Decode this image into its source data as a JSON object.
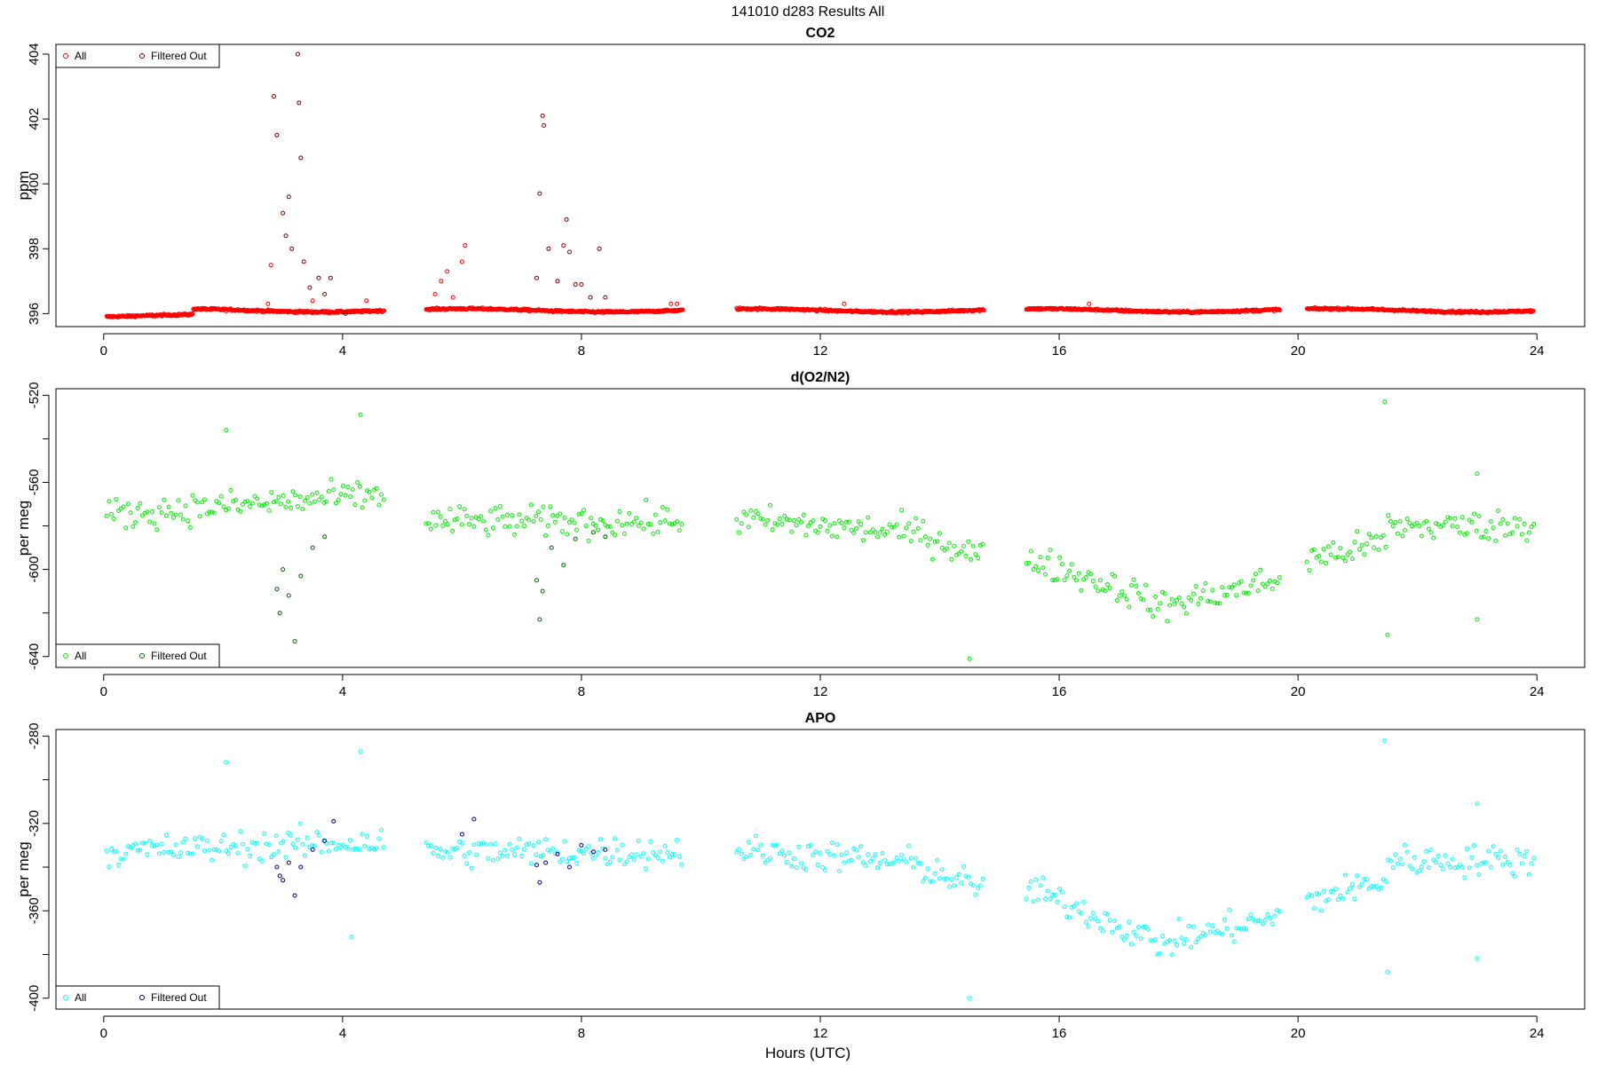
{
  "title": "141010   d283   Results All",
  "xlabel": "Hours (UTC)",
  "chart_data": [
    {
      "type": "scatter",
      "title": "CO2",
      "ylabel": "ppm",
      "xlim": [
        -0.8,
        24.8
      ],
      "ylim": [
        395.6,
        404.3
      ],
      "xticks": [
        0,
        4,
        8,
        12,
        16,
        20,
        24
      ],
      "yticks": [
        396,
        398,
        400,
        402,
        404
      ],
      "legend_position": "top-left",
      "colors": {
        "all": "#ff0000",
        "filtered": "#7a0000"
      },
      "series": [
        {
          "name": "All",
          "points": []
        },
        {
          "name": "Filtered Out",
          "points": [
            [
              2.85,
              402.7
            ],
            [
              2.9,
              401.5
            ],
            [
              3.0,
              399.1
            ],
            [
              3.05,
              398.4
            ],
            [
              3.1,
              399.6
            ],
            [
              3.15,
              398.0
            ],
            [
              3.25,
              404.0
            ],
            [
              3.27,
              402.5
            ],
            [
              3.3,
              400.8
            ],
            [
              3.35,
              397.6
            ],
            [
              3.45,
              396.8
            ],
            [
              3.6,
              397.1
            ],
            [
              3.7,
              396.6
            ],
            [
              3.8,
              397.1
            ],
            [
              4.05,
              396.0
            ],
            [
              7.25,
              397.1
            ],
            [
              7.3,
              399.7
            ],
            [
              7.35,
              402.1
            ],
            [
              7.37,
              401.8
            ],
            [
              7.45,
              398.0
            ],
            [
              7.6,
              397.0
            ],
            [
              7.7,
              398.1
            ],
            [
              7.75,
              398.9
            ],
            [
              7.8,
              397.9
            ],
            [
              7.9,
              396.9
            ],
            [
              8.0,
              396.9
            ],
            [
              8.15,
              396.5
            ],
            [
              8.3,
              398.0
            ],
            [
              8.4,
              396.5
            ]
          ]
        }
      ],
      "x_segments": [
        [
          0.05,
          4.7
        ],
        [
          5.4,
          9.7
        ],
        [
          10.6,
          14.75
        ],
        [
          15.45,
          19.7
        ],
        [
          20.15,
          23.95
        ]
      ]
    },
    {
      "type": "scatter",
      "title": "d(O2/N2)",
      "ylabel": "per meg",
      "xlim": [
        -0.8,
        24.8
      ],
      "ylim": [
        -645,
        -517
      ],
      "xticks": [
        0,
        4,
        8,
        12,
        16,
        20,
        24
      ],
      "yticks": [
        -520,
        -560,
        -600,
        -640
      ],
      "legend_position": "bottom-left",
      "colors": {
        "all": "#00ee00",
        "filtered": "#006400"
      },
      "series": [
        {
          "name": "All",
          "points": []
        },
        {
          "name": "Filtered Out",
          "points": [
            [
              2.9,
              -609
            ],
            [
              2.95,
              -620
            ],
            [
              3.0,
              -600
            ],
            [
              3.1,
              -612
            ],
            [
              3.2,
              -633
            ],
            [
              3.3,
              -603
            ],
            [
              3.5,
              -590
            ],
            [
              3.7,
              -585
            ],
            [
              7.25,
              -605
            ],
            [
              7.3,
              -623
            ],
            [
              7.35,
              -610
            ],
            [
              7.5,
              -590
            ],
            [
              7.7,
              -598
            ],
            [
              7.9,
              -586
            ],
            [
              8.2,
              -583
            ],
            [
              8.4,
              -585
            ]
          ]
        }
      ],
      "x_segments": [
        [
          0.05,
          4.7
        ],
        [
          5.4,
          9.7
        ],
        [
          10.6,
          14.75
        ],
        [
          15.45,
          19.7
        ],
        [
          20.15,
          23.95
        ]
      ]
    },
    {
      "type": "scatter",
      "title": "APO",
      "ylabel": "per meg",
      "xlim": [
        -0.8,
        24.8
      ],
      "ylim": [
        -405,
        -277
      ],
      "xticks": [
        0,
        4,
        8,
        12,
        16,
        20,
        24
      ],
      "yticks": [
        -280,
        -320,
        -360,
        -400
      ],
      "legend_position": "bottom-left",
      "colors": {
        "all": "#00ffff",
        "filtered": "#00008b"
      },
      "series": [
        {
          "name": "All",
          "points": []
        },
        {
          "name": "Filtered Out",
          "points": [
            [
              2.9,
              -340
            ],
            [
              2.95,
              -344
            ],
            [
              3.0,
              -346
            ],
            [
              3.1,
              -338
            ],
            [
              3.2,
              -353
            ],
            [
              3.3,
              -340
            ],
            [
              3.5,
              -332
            ],
            [
              3.7,
              -328
            ],
            [
              3.85,
              -319
            ],
            [
              6.0,
              -325
            ],
            [
              6.2,
              -318
            ],
            [
              7.25,
              -339
            ],
            [
              7.3,
              -347
            ],
            [
              7.4,
              -338
            ],
            [
              7.6,
              -334
            ],
            [
              7.8,
              -340
            ],
            [
              8.0,
              -330
            ],
            [
              8.2,
              -333
            ],
            [
              8.4,
              -332
            ]
          ]
        }
      ],
      "x_segments": [
        [
          0.05,
          4.7
        ],
        [
          5.4,
          9.7
        ],
        [
          10.6,
          14.75
        ],
        [
          15.45,
          19.7
        ],
        [
          20.15,
          23.95
        ]
      ]
    }
  ],
  "legend": {
    "all_label": "All",
    "filtered_label": "Filtered Out"
  }
}
